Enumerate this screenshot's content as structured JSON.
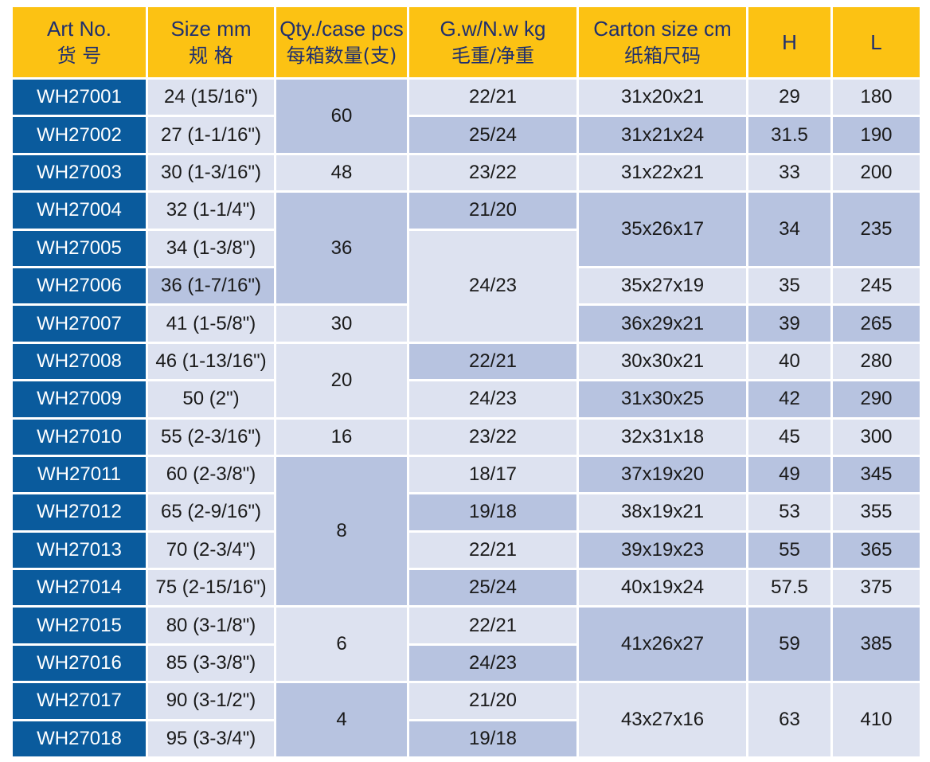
{
  "headers": [
    {
      "en": "Art No.",
      "zh": "货 号"
    },
    {
      "en": "Size mm",
      "zh": "规 格"
    },
    {
      "en": "Qty./case pcs",
      "zh": "每箱数量(支)"
    },
    {
      "en": "G.w/N.w kg",
      "zh": "毛重/净重"
    },
    {
      "en": "Carton size cm",
      "zh": "纸箱尺码"
    },
    {
      "en": "H",
      "zh": ""
    },
    {
      "en": "L",
      "zh": ""
    }
  ],
  "rows": [
    {
      "art": "WH27001",
      "size": "24 (15/16\")",
      "h": "29",
      "l": "180"
    },
    {
      "art": "WH27002",
      "size": "27 (1-1/16\")",
      "h": "31.5",
      "l": "190"
    },
    {
      "art": "WH27003",
      "size": "30 (1-3/16\")",
      "h": "33",
      "l": "200"
    },
    {
      "art": "WH27004",
      "size": "32 (1-1/4\")",
      "h": "34",
      "l": "235"
    },
    {
      "art": "WH27005",
      "size": "34 (1-3/8\")",
      "h": "",
      "l": ""
    },
    {
      "art": "WH27006",
      "size": "36 (1-7/16\")",
      "h": "35",
      "l": "245"
    },
    {
      "art": "WH27007",
      "size": "41 (1-5/8\")",
      "h": "39",
      "l": "265"
    },
    {
      "art": "WH27008",
      "size": "46 (1-13/16\")",
      "h": "40",
      "l": "280"
    },
    {
      "art": "WH27009",
      "size": "50 (2\")",
      "h": "42",
      "l": "290"
    },
    {
      "art": "WH27010",
      "size": "55 (2-3/16\")",
      "h": "45",
      "l": "300"
    },
    {
      "art": "WH27011",
      "size": "60 (2-3/8\")",
      "h": "49",
      "l": "345"
    },
    {
      "art": "WH27012",
      "size": "65 (2-9/16\")",
      "h": "53",
      "l": "355"
    },
    {
      "art": "WH27013",
      "size": "70 (2-3/4\")",
      "h": "55",
      "l": "365"
    },
    {
      "art": "WH27014",
      "size": "75 (2-15/16\")",
      "h": "57.5",
      "l": "375"
    },
    {
      "art": "WH27015",
      "size": "80 (3-1/8\")",
      "h": "59",
      "l": "385"
    },
    {
      "art": "WH27016",
      "size": "85 (3-3/8\")",
      "h": "",
      "l": ""
    },
    {
      "art": "WH27017",
      "size": "90 (3-1/2\")",
      "h": "63",
      "l": "410"
    },
    {
      "art": "WH27018",
      "size": "95 (3-3/4\")",
      "h": "",
      "l": ""
    }
  ],
  "qty": [
    "60",
    "48",
    "36",
    "30",
    "20",
    "16",
    "8",
    "6",
    "4"
  ],
  "weight": [
    "22/21",
    "25/24",
    "23/22",
    "21/20",
    "24/23",
    "22/21",
    "24/23",
    "23/22",
    "18/17",
    "19/18",
    "22/21",
    "25/24",
    "22/21",
    "24/23",
    "21/20",
    "19/18"
  ],
  "carton": [
    "31x20x21",
    "31x21x24",
    "31x22x21",
    "35x26x17",
    "35x27x19",
    "36x29x21",
    "30x30x21",
    "31x30x25",
    "32x31x18",
    "37x19x20",
    "38x19x21",
    "39x19x23",
    "40x19x24",
    "41x26x27",
    "43x27x16"
  ],
  "colors": {
    "header_bg": "#fcc213",
    "header_text": "#1f2f6e",
    "art_bg": "#0a5b9d",
    "cell_light": "#dde2f0",
    "cell_dark": "#b7c3e0"
  }
}
